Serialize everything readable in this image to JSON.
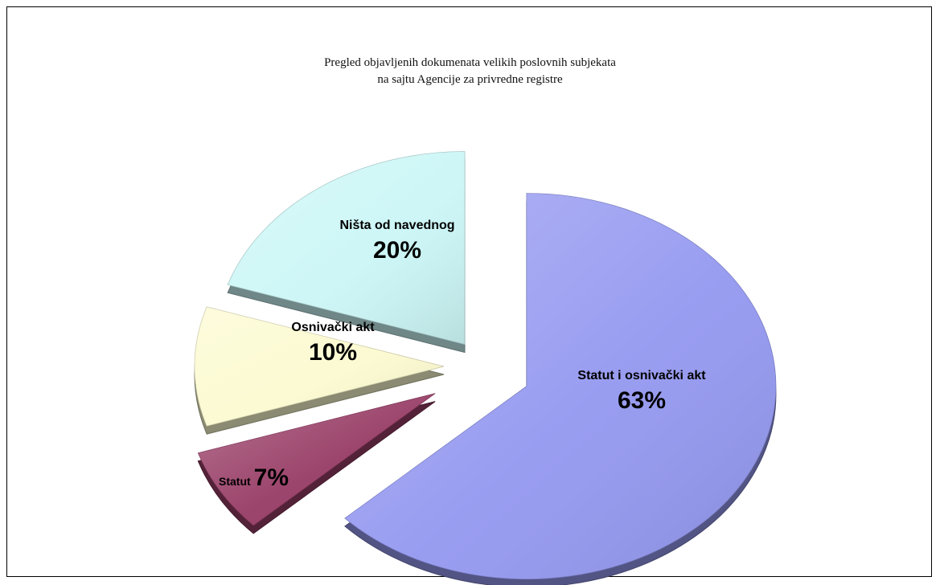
{
  "chart_data": {
    "type": "pie",
    "title": "Pregled objavljenih dokumenata velikih poslovnih subjekata",
    "subtitle": "na sajtu Agencije za privredne registre",
    "style": "3d-exploded",
    "slices": [
      {
        "label": "Statut i osnivački akt",
        "value": 63,
        "value_label": "63%",
        "color": "#9599f0"
      },
      {
        "label": "Statut",
        "value": 7,
        "value_label": "7%",
        "color": "#983d66"
      },
      {
        "label": "Osnivački akt",
        "value": 10,
        "value_label": "10%",
        "color": "#fcfad0"
      },
      {
        "label": "Ništa od navednog",
        "value": 20,
        "value_label": "20%",
        "color": "#ccf6f6"
      }
    ]
  }
}
